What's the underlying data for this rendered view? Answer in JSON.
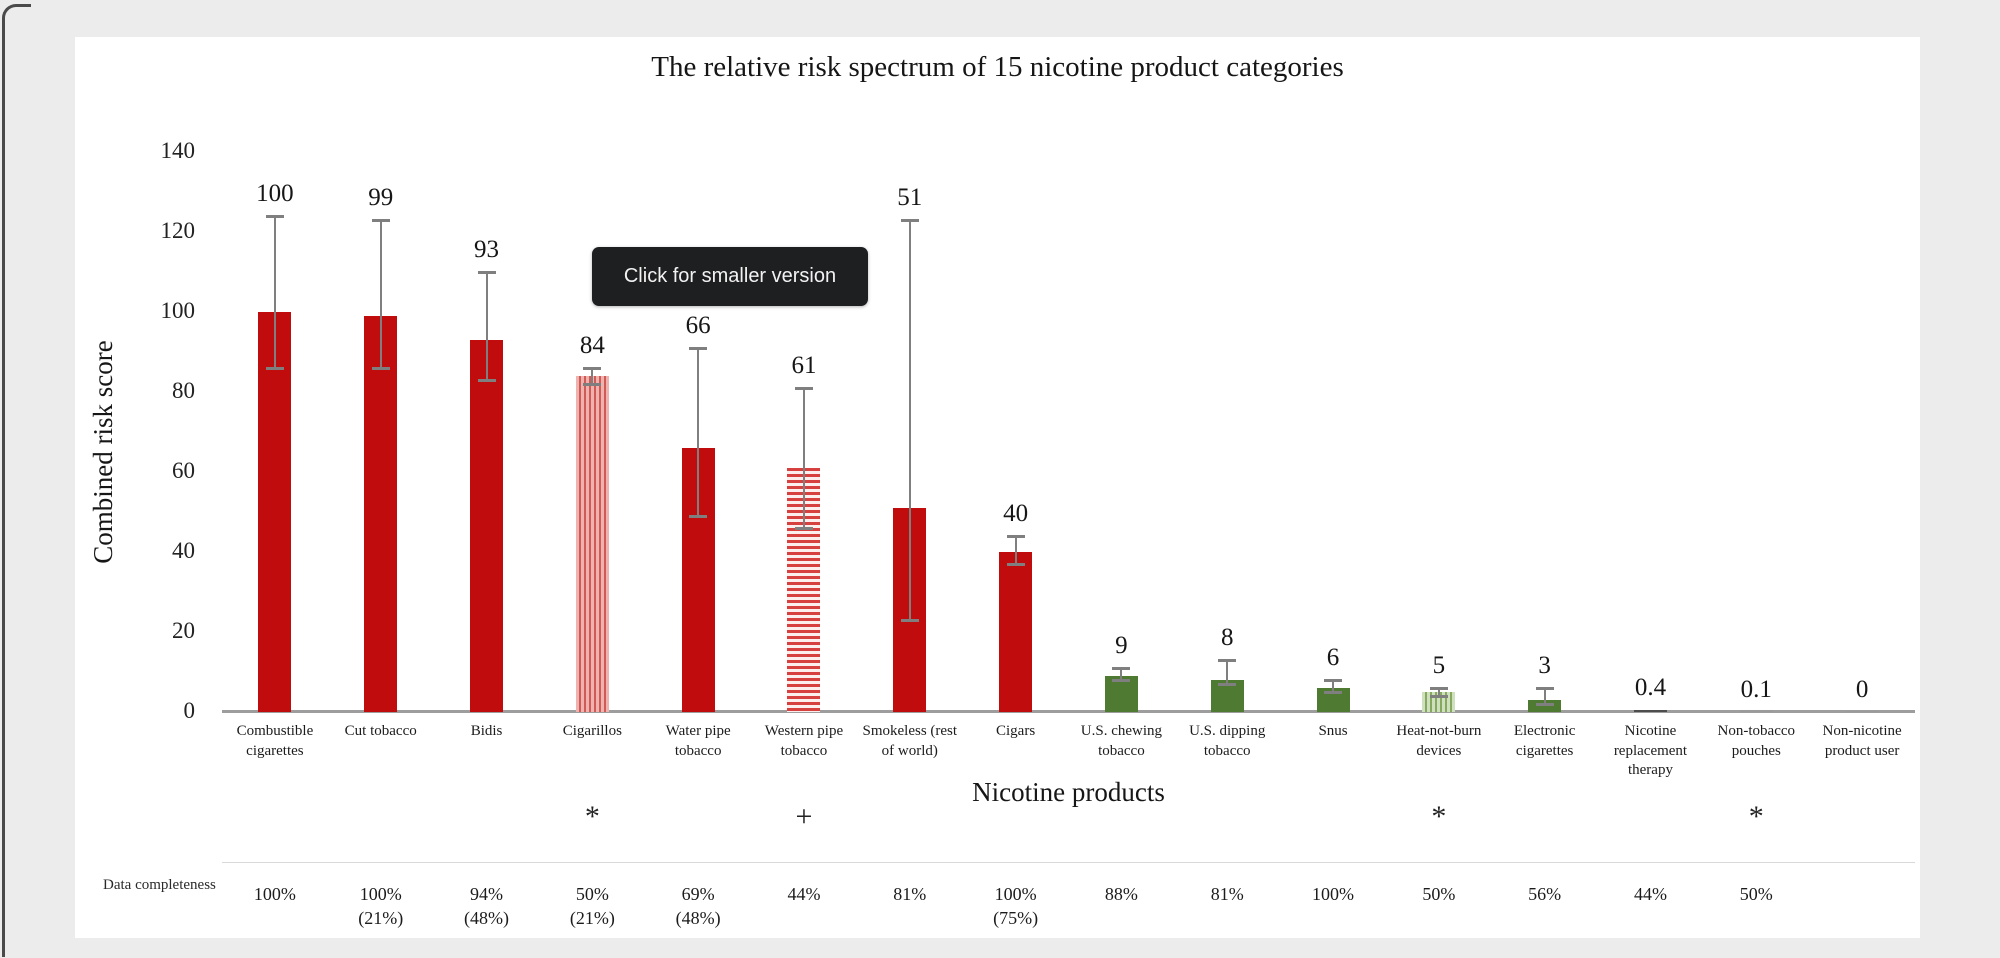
{
  "tooltip": {
    "label": "Click for smaller version",
    "bg": "#1e1f21",
    "fg": "#f2f2f2"
  },
  "footer": {
    "row_label": "Data completeness"
  },
  "colors": {
    "bar_red": "#c00c0c",
    "bar_green": "#4e7b31",
    "error_bar": "#7f7f7f",
    "axis_line": "#9d9d9d",
    "card_background": "#ffffff",
    "page_background": "#ececec"
  },
  "chart_data": {
    "type": "bar",
    "title": "The relative risk spectrum of 15 nicotine product categories",
    "xlabel": "Nicotine products",
    "ylabel": "Combined risk score",
    "ylim": [
      0,
      140
    ],
    "yticks": [
      0,
      20,
      40,
      60,
      80,
      100,
      120,
      140
    ],
    "grid": false,
    "legend": "none",
    "error_bars": true,
    "categories": [
      {
        "label_lines": [
          "Combustible",
          "cigarettes"
        ],
        "value": 100,
        "value_label": "100",
        "err": [
          86,
          124
        ],
        "fill": "red-solid",
        "symbol": "",
        "completeness_lines": [
          "100%"
        ]
      },
      {
        "label_lines": [
          "Cut tobacco"
        ],
        "value": 99,
        "value_label": "99",
        "err": [
          86,
          123
        ],
        "fill": "red-solid",
        "symbol": "",
        "completeness_lines": [
          "100%",
          "(21%)"
        ]
      },
      {
        "label_lines": [
          "Bidis"
        ],
        "value": 93,
        "value_label": "93",
        "err": [
          83,
          110
        ],
        "fill": "red-solid",
        "symbol": "",
        "completeness_lines": [
          "94%",
          "(48%)"
        ]
      },
      {
        "label_lines": [
          "Cigarillos"
        ],
        "value": 84,
        "value_label": "84",
        "err": [
          82,
          86
        ],
        "fill": "red-vstripe",
        "symbol": "*",
        "completeness_lines": [
          "50%",
          "(21%)"
        ]
      },
      {
        "label_lines": [
          "Water pipe",
          "tobacco"
        ],
        "value": 66,
        "value_label": "66",
        "err": [
          49,
          91
        ],
        "fill": "red-solid",
        "symbol": "",
        "completeness_lines": [
          "69%",
          "(48%)"
        ]
      },
      {
        "label_lines": [
          "Western pipe",
          "tobacco"
        ],
        "value": 61,
        "value_label": "61",
        "err": [
          46,
          81
        ],
        "fill": "red-hstripe",
        "symbol": "+",
        "completeness_lines": [
          "44%"
        ]
      },
      {
        "label_lines": [
          "Smokeless (rest",
          "of world)"
        ],
        "value": 51,
        "value_label": "51",
        "err": [
          23,
          123
        ],
        "fill": "red-solid",
        "symbol": "",
        "completeness_lines": [
          "81%"
        ]
      },
      {
        "label_lines": [
          "Cigars"
        ],
        "value": 40,
        "value_label": "40",
        "err": [
          37,
          44
        ],
        "fill": "red-solid",
        "symbol": "",
        "completeness_lines": [
          "100%",
          "(75%)"
        ]
      },
      {
        "label_lines": [
          "U.S. chewing",
          "tobacco"
        ],
        "value": 9,
        "value_label": "9",
        "err": [
          8,
          11
        ],
        "fill": "green-solid",
        "symbol": "",
        "completeness_lines": [
          "88%"
        ]
      },
      {
        "label_lines": [
          "U.S. dipping",
          "tobacco"
        ],
        "value": 8,
        "value_label": "8",
        "err": [
          7,
          13
        ],
        "fill": "green-solid",
        "symbol": "",
        "completeness_lines": [
          "81%"
        ]
      },
      {
        "label_lines": [
          "Snus"
        ],
        "value": 6,
        "value_label": "6",
        "err": [
          5,
          8
        ],
        "fill": "green-solid",
        "symbol": "",
        "completeness_lines": [
          "100%"
        ]
      },
      {
        "label_lines": [
          "Heat-not-burn",
          "devices"
        ],
        "value": 5,
        "value_label": "5",
        "err": [
          4,
          6
        ],
        "fill": "green-vstripe",
        "symbol": "*",
        "completeness_lines": [
          "50%"
        ]
      },
      {
        "label_lines": [
          "Electronic",
          "cigarettes"
        ],
        "value": 3,
        "value_label": "3",
        "err": [
          2,
          6
        ],
        "fill": "green-solid",
        "symbol": "",
        "completeness_lines": [
          "56%"
        ]
      },
      {
        "label_lines": [
          "Nicotine",
          "replacement",
          "therapy"
        ],
        "value": 0.4,
        "value_label": "0.4",
        "err": null,
        "fill": "dark-thin",
        "symbol": "",
        "completeness_lines": [
          "44%"
        ]
      },
      {
        "label_lines": [
          "Non-tobacco",
          "pouches"
        ],
        "value": 0.1,
        "value_label": "0.1",
        "err": null,
        "fill": "gray-thin",
        "symbol": "*",
        "completeness_lines": [
          "50%"
        ]
      },
      {
        "label_lines": [
          "Non-nicotine",
          "product user"
        ],
        "value": 0,
        "value_label": "0",
        "err": null,
        "fill": "gray-thin",
        "symbol": "",
        "completeness_lines": []
      }
    ]
  }
}
